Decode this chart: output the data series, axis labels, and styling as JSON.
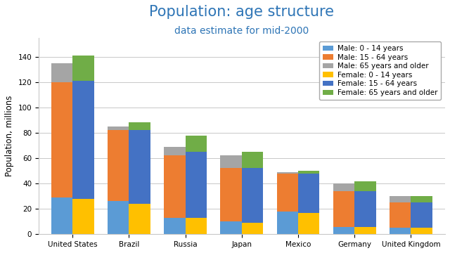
{
  "title": "Population: age structure",
  "subtitle": "data estimate for mid-2000",
  "ylabel": "Population, millions",
  "countries": [
    "United States",
    "Brazil",
    "Russia",
    "Japan",
    "Mexico",
    "Germany",
    "United Kingdom"
  ],
  "series": {
    "Male: 0 - 14 years": [
      29,
      26,
      13,
      10,
      18,
      6,
      5
    ],
    "Male: 15 - 64 years": [
      91,
      56,
      49,
      42,
      30,
      28,
      20
    ],
    "Male: 65 years and older": [
      15,
      3,
      7,
      10,
      1,
      6,
      5
    ],
    "Female: 0 - 14 years": [
      28,
      24,
      13,
      9,
      17,
      6,
      5
    ],
    "Female: 15 - 64 years": [
      93,
      58,
      52,
      43,
      31,
      28,
      20
    ],
    "Female: 65 years and older": [
      20,
      6,
      13,
      13,
      2,
      8,
      5
    ]
  },
  "colors": {
    "Male: 0 - 14 years": "#5B9BD5",
    "Male: 15 - 64 years": "#ED7D31",
    "Male: 65 years and older": "#A5A5A5",
    "Female: 0 - 14 years": "#FFC000",
    "Female: 15 - 64 years": "#4472C4",
    "Female: 65 years and older": "#70AD47"
  },
  "title_color": "#2E75B6",
  "subtitle_color": "#2E75B6",
  "background_color": "#FFFFFF",
  "plot_bg_color": "#FFFFFF",
  "grid_color": "#C8C8C8",
  "ylim": [
    0,
    155
  ],
  "yticks": [
    0,
    20,
    40,
    60,
    80,
    100,
    120,
    140
  ],
  "bar_width": 0.38,
  "legend_fontsize": 7.5,
  "title_fontsize": 15,
  "subtitle_fontsize": 10,
  "ylabel_fontsize": 8.5,
  "tick_fontsize": 7.5
}
